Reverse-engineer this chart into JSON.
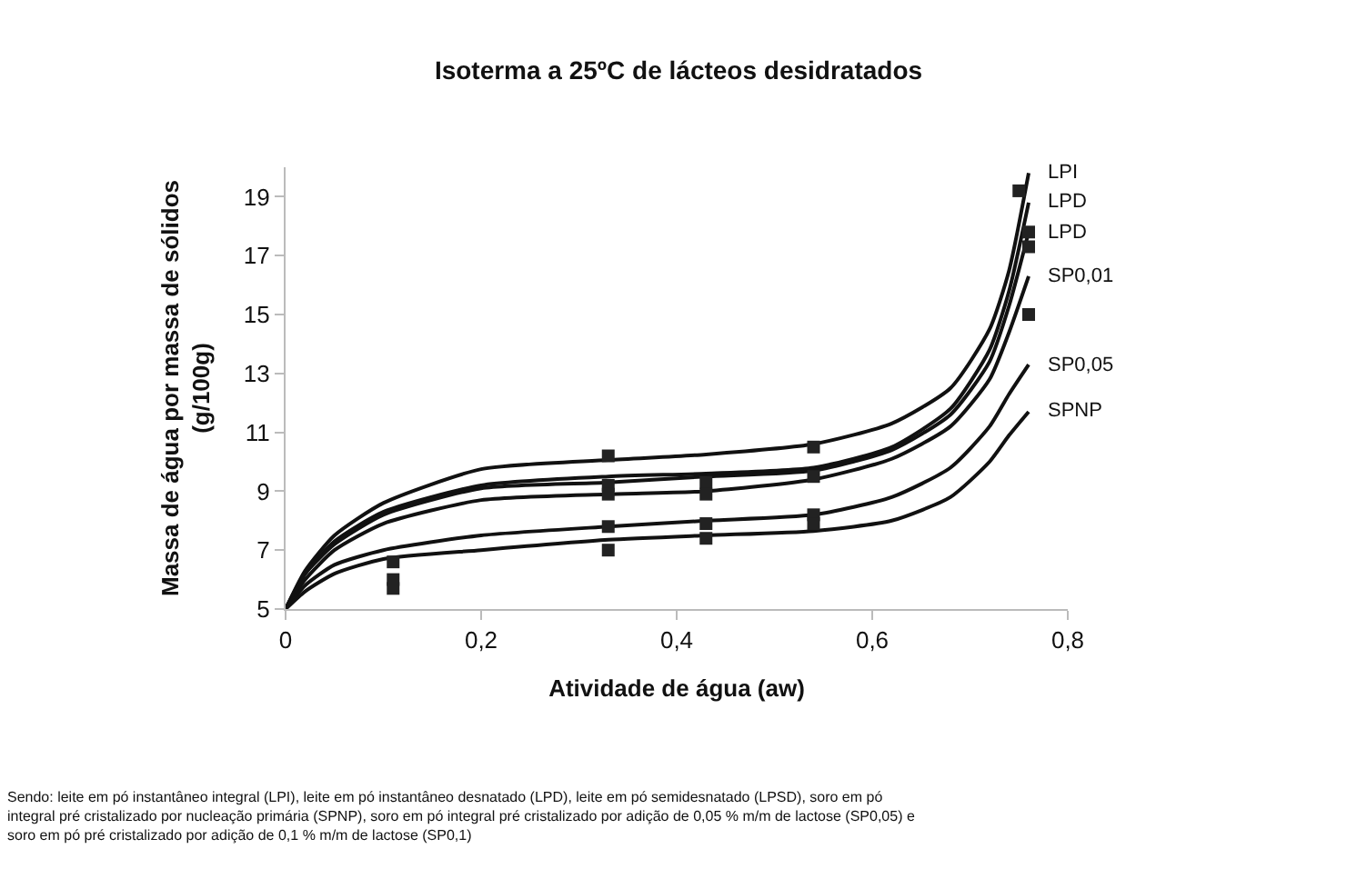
{
  "chart_data": {
    "type": "line",
    "title": "Isoterma a 25ºC de lácteos desidratados",
    "xlabel": "Atividade de água (aw)",
    "ylabel": "Massa de água por massa de sólidos\n(g/100g)",
    "x": [
      0,
      0.02,
      0.05,
      0.1,
      0.2,
      0.33,
      0.43,
      0.54,
      0.62,
      0.68,
      0.72,
      0.74,
      0.76
    ],
    "series": [
      {
        "name": "LPI",
        "color": "#111111",
        "values": [
          5,
          6.3,
          7.5,
          8.6,
          9.75,
          10.06,
          10.25,
          10.6,
          11.3,
          12.5,
          14.5,
          16.5,
          19.8
        ]
      },
      {
        "name": "LPD",
        "color": "#111111",
        "values": [
          5,
          6.2,
          7.3,
          8.3,
          9.2,
          9.5,
          9.6,
          9.8,
          10.5,
          11.8,
          13.8,
          15.8,
          18.8
        ]
      },
      {
        "name": "LPD",
        "color": "#111111",
        "values": [
          5,
          6.2,
          7.2,
          8.2,
          9.1,
          9.3,
          9.5,
          9.7,
          10.4,
          11.6,
          13.4,
          15.3,
          17.8
        ]
      },
      {
        "name": "SP0,01",
        "color": "#111111",
        "values": [
          5,
          6.0,
          7.0,
          7.9,
          8.7,
          8.9,
          9.0,
          9.4,
          10.1,
          11.2,
          12.8,
          14.4,
          16.3
        ]
      },
      {
        "name": "SP0,05",
        "color": "#111111",
        "values": [
          5,
          5.8,
          6.5,
          7.0,
          7.5,
          7.8,
          8.0,
          8.2,
          8.8,
          9.8,
          11.2,
          12.3,
          13.3
        ]
      },
      {
        "name": "SPNP",
        "color": "#111111",
        "values": [
          5,
          5.6,
          6.2,
          6.7,
          7.0,
          7.35,
          7.5,
          7.65,
          8.0,
          8.8,
          10.0,
          10.9,
          11.7
        ]
      },
      {
        "type": "scatter",
        "marker": "square",
        "color": "#222222",
        "x": [
          0.11,
          0.11,
          0.11,
          0.33,
          0.33,
          0.33,
          0.33,
          0.33,
          0.43,
          0.43,
          0.43,
          0.43,
          0.54,
          0.54,
          0.54,
          0.54,
          0.75,
          0.76,
          0.76,
          0.76
        ],
        "values": [
          6.6,
          6.0,
          5.7,
          10.2,
          9.2,
          8.9,
          7.8,
          7.0,
          9.3,
          8.9,
          7.9,
          7.4,
          10.5,
          9.5,
          8.2,
          7.9,
          19.2,
          17.8,
          17.3,
          15.0
        ]
      }
    ],
    "xlim": [
      0,
      0.8
    ],
    "xticks": [
      0,
      {
        "value": 0.2,
        "label": "0,2"
      },
      {
        "value": 0.4,
        "label": "0,4"
      },
      {
        "value": 0.6,
        "label": "0,6"
      },
      {
        "value": 0.8,
        "label": "0,8"
      }
    ],
    "ylim": [
      5,
      20
    ],
    "yticks": [
      5,
      7,
      9,
      11,
      13,
      15,
      17,
      19
    ],
    "legend": false,
    "marker": "none",
    "line_style": "solid",
    "annotations": [
      "Sendo: leite em pó instantâneo integral (LPI), leite em pó instantâneo desnatado (LPD), leite em pó semidesnatado (LPSD), soro em pó\nintegral pré cristalizado por nucleação primária (SPNP), soro em pó integral pré cristalizado por adição de 0,05 % m/m de lactose (SP0,05) e\nsoro em pó pré cristalizado por adição de 0,1 % m/m de lactose (SP0,1)"
    ]
  }
}
